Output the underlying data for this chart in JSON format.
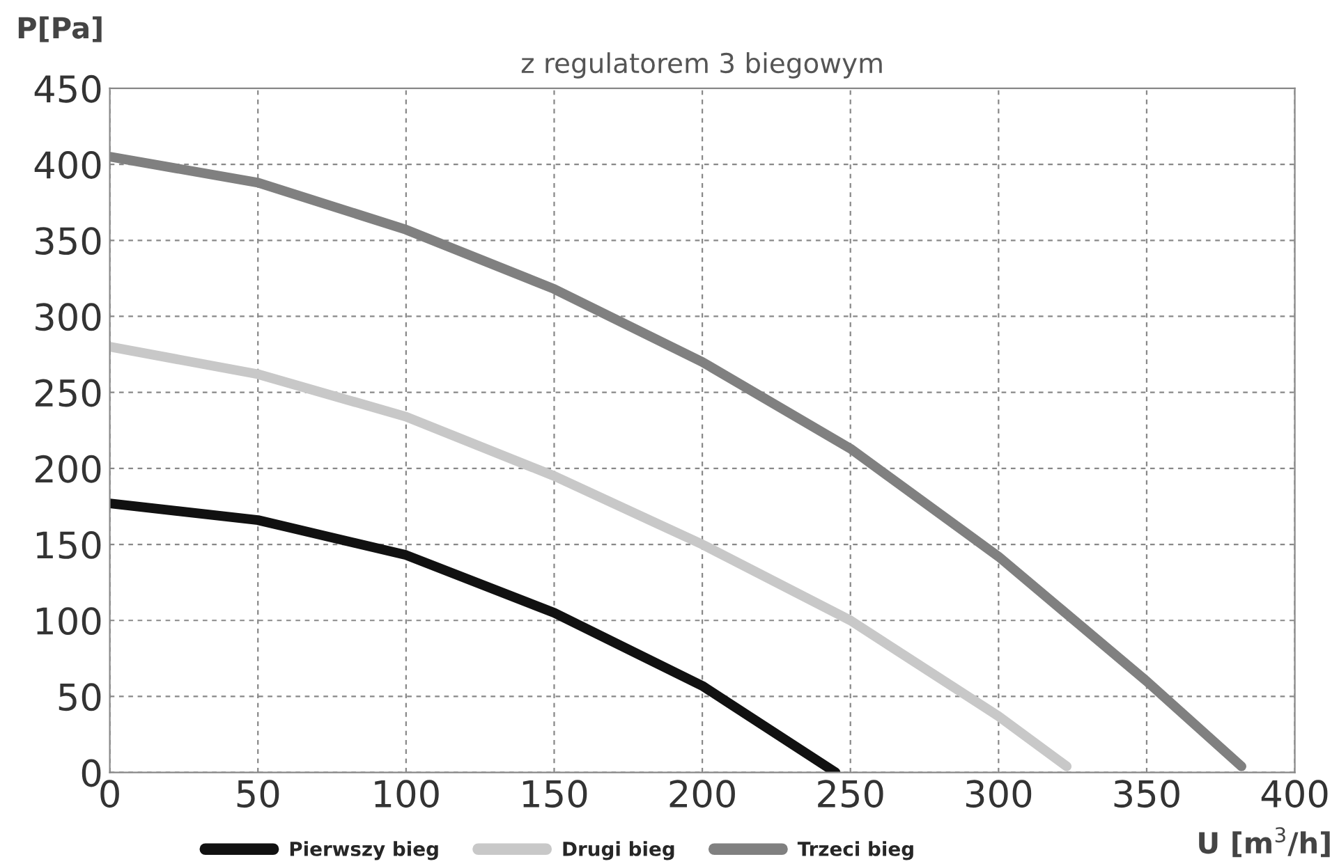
{
  "chart_data": {
    "type": "line",
    "title": "z regulatorem 3 biegowym",
    "xlabel": "U [m$^{3}$/h]",
    "ylabel": "P[Pa]",
    "series": [
      {
        "name": "Pierwszy bieg",
        "color": "#111111",
        "x": [
          0,
          50,
          100,
          150,
          200,
          245
        ],
        "values": [
          177,
          166,
          143,
          105,
          57,
          0
        ]
      },
      {
        "name": "Drugi bieg",
        "color": "#c8c8c8",
        "x": [
          0,
          50,
          100,
          150,
          200,
          250,
          300,
          323
        ],
        "values": [
          280,
          262,
          234,
          195,
          150,
          100,
          37,
          4
        ]
      },
      {
        "name": "Trzeci bieg",
        "color": "#808080",
        "x": [
          0,
          50,
          100,
          150,
          200,
          250,
          300,
          350,
          382
        ],
        "values": [
          405,
          388,
          357,
          318,
          270,
          213,
          142,
          60,
          4
        ]
      }
    ],
    "xlim": [
      0,
      400
    ],
    "xticks": [
      0,
      50,
      100,
      150,
      200,
      250,
      300,
      350,
      400
    ],
    "ylim": [
      0,
      450
    ],
    "yticks": [
      0,
      50,
      100,
      150,
      200,
      250,
      300,
      350,
      400,
      450
    ],
    "grid": true,
    "legend": "bottom",
    "marker": "none",
    "line_style": "solid"
  }
}
